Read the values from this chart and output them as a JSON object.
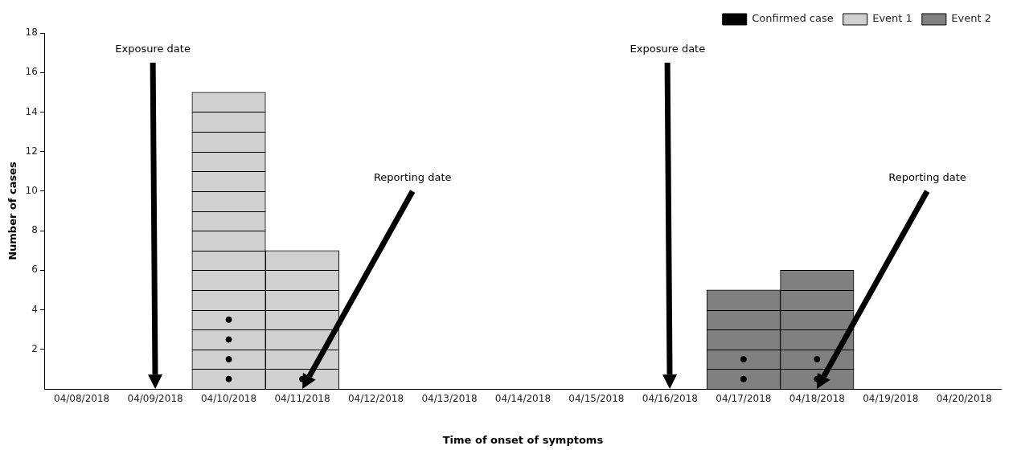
{
  "chart_data": {
    "type": "bar",
    "stacked": true,
    "xlabel": "Time of onset of symptoms",
    "ylabel": "Number of cases",
    "categories": [
      "04/08/2018",
      "04/09/2018",
      "04/10/2018",
      "04/11/2018",
      "04/12/2018",
      "04/13/2018",
      "04/14/2018",
      "04/15/2018",
      "04/16/2018",
      "04/17/2018",
      "04/18/2018",
      "04/19/2018",
      "04/20/2018"
    ],
    "series": [
      {
        "name": "Event 1",
        "color": "#d0d0d0",
        "values": [
          null,
          null,
          15,
          7,
          null,
          null,
          null,
          null,
          null,
          null,
          null,
          null,
          null
        ]
      },
      {
        "name": "Event 2",
        "color": "#808080",
        "values": [
          null,
          null,
          null,
          null,
          null,
          null,
          null,
          null,
          null,
          5,
          6,
          null,
          null
        ]
      },
      {
        "name": "Confirmed case",
        "type": "scatter",
        "color": "#000000",
        "marker": "circle",
        "x": [
          "04/10/2018",
          "04/10/2018",
          "04/10/2018",
          "04/10/2018",
          "04/11/2018",
          "04/17/2018",
          "04/17/2018",
          "04/18/2018",
          "04/18/2018"
        ],
        "values": [
          0.5,
          1.5,
          2.5,
          3.5,
          0.5,
          0.5,
          1.5,
          0.5,
          1.5
        ]
      }
    ],
    "ylim": [
      0,
      18
    ],
    "yticks": [
      2,
      4,
      6,
      8,
      10,
      12,
      14,
      16,
      18
    ],
    "grid": false,
    "legend": "top right",
    "annotations": [
      "Exposure date",
      "Reporting date",
      "Exposure date",
      "Reporting date"
    ]
  }
}
